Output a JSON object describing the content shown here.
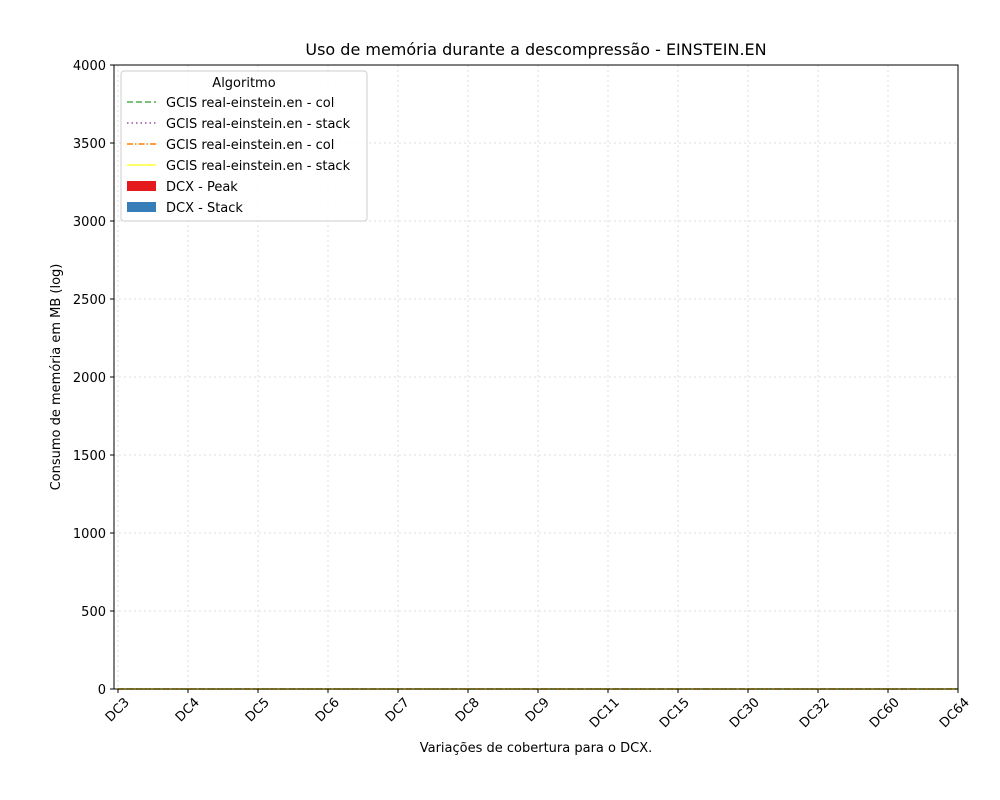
{
  "chart_data": {
    "type": "bar",
    "title": "Uso de memória durante a descompressão -  EINSTEIN.EN",
    "xlabel": "Variações de cobertura para o DCX.",
    "ylabel": "Consumo de memória em MB (log)",
    "categories": [
      "DC3",
      "DC4",
      "DC5",
      "DC6",
      "DC7",
      "DC8",
      "DC9",
      "DC11",
      "DC15",
      "DC30",
      "DC32",
      "DC60",
      "DC64"
    ],
    "ylim": [
      0,
      4000
    ],
    "yticks": [
      "0",
      "500",
      "1000",
      "1500",
      "2000",
      "2500",
      "3000",
      "3500",
      "4000"
    ],
    "grid": true,
    "legend": {
      "title": "Algoritmo",
      "placement": "top-left"
    },
    "series": [
      {
        "name": "GCIS real-einstein.en - col",
        "kind": "line",
        "style": "dashed",
        "color": "#4daf4a",
        "values": [
          0,
          0,
          0,
          0,
          0,
          0,
          0,
          0,
          0,
          0,
          0,
          0,
          0
        ]
      },
      {
        "name": "GCIS real-einstein.en - stack",
        "kind": "line",
        "style": "dotted",
        "color": "#984ea3",
        "values": [
          0,
          0,
          0,
          0,
          0,
          0,
          0,
          0,
          0,
          0,
          0,
          0,
          0
        ]
      },
      {
        "name": "GCIS real-einstein.en - col",
        "kind": "line",
        "style": "dashdot",
        "color": "#ff7f00",
        "values": [
          0,
          0,
          0,
          0,
          0,
          0,
          0,
          0,
          0,
          0,
          0,
          0,
          0
        ]
      },
      {
        "name": "GCIS real-einstein.en - stack",
        "kind": "line",
        "style": "solid",
        "color": "#ffff33",
        "values": [
          0,
          0,
          0,
          0,
          0,
          0,
          0,
          0,
          0,
          0,
          0,
          0,
          0
        ]
      },
      {
        "name": "DCX - Peak",
        "kind": "bar",
        "color": "#e41a1c",
        "values": [
          0,
          0,
          0,
          0,
          0,
          0,
          0,
          0,
          0,
          0,
          0,
          0,
          0
        ]
      },
      {
        "name": "DCX - Stack",
        "kind": "bar",
        "color": "#377eb8",
        "values": [
          0,
          0,
          0,
          0,
          0,
          0,
          0,
          0,
          0,
          0,
          0,
          0,
          0
        ]
      }
    ]
  }
}
